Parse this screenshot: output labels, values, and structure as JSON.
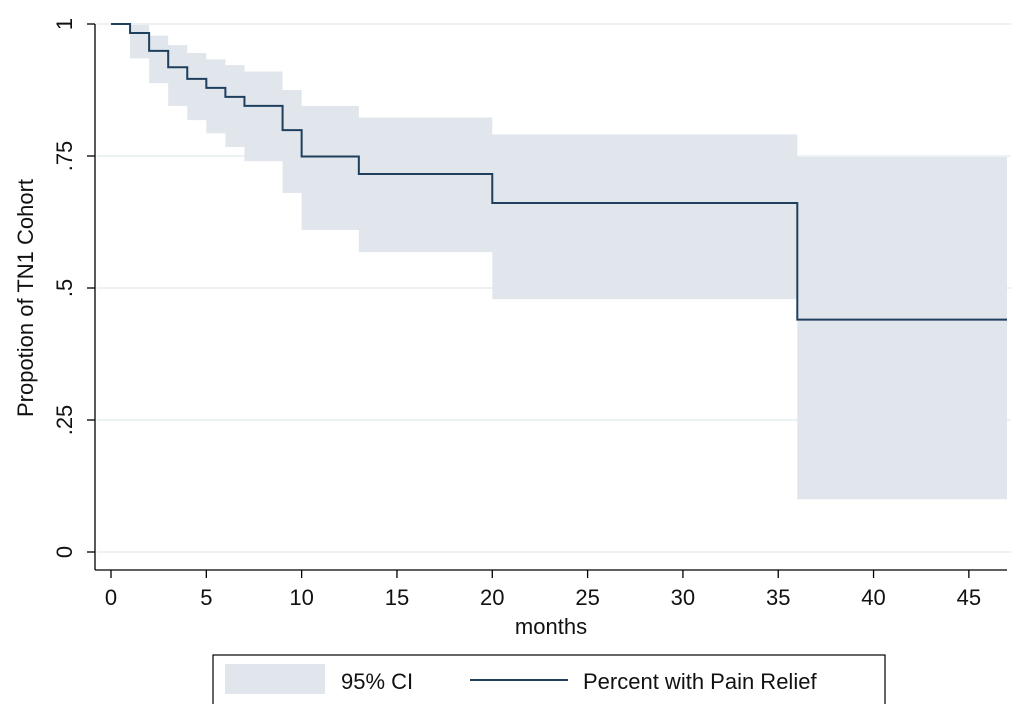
{
  "chart_data": {
    "type": "line",
    "title": "",
    "xlabel": "months",
    "ylabel": "Propotion of TN1 Cohort",
    "xlim": [
      0,
      47
    ],
    "ylim": [
      0,
      1
    ],
    "x_ticks": [
      0,
      5,
      10,
      15,
      20,
      25,
      30,
      35,
      40,
      45
    ],
    "x_tick_labels": [
      "0",
      "5",
      "10",
      "15",
      "20",
      "25",
      "30",
      "35",
      "40",
      "45"
    ],
    "y_ticks": [
      0,
      0.25,
      0.5,
      0.75,
      1
    ],
    "y_tick_labels": [
      "0",
      ".25",
      ".5",
      ".75",
      "1"
    ],
    "grid": "horizontal",
    "legend_position": "bottom",
    "colors": {
      "line": "#1f3f5f",
      "ci_fill": "#e1e5ec",
      "grid": "#e6eef0",
      "axis": "#000000"
    },
    "series": [
      {
        "name": "Percent with Pain Relief",
        "step": "post",
        "x": [
          0,
          1,
          2,
          3,
          4,
          5,
          6,
          7,
          9,
          10,
          13,
          20,
          36,
          47
        ],
        "y": [
          1.0,
          0.983,
          0.949,
          0.918,
          0.896,
          0.879,
          0.862,
          0.845,
          0.799,
          0.749,
          0.716,
          0.661,
          0.44,
          0.44
        ]
      }
    ],
    "ci_band": {
      "name": "95% CI",
      "step": "post",
      "x": [
        1,
        2,
        3,
        4,
        5,
        6,
        7,
        9,
        10,
        13,
        20,
        36,
        47
      ],
      "lower": [
        0.935,
        0.888,
        0.845,
        0.818,
        0.793,
        0.767,
        0.74,
        0.68,
        0.61,
        0.568,
        0.479,
        0.1,
        0.1
      ],
      "upper": [
        0.998,
        0.978,
        0.96,
        0.945,
        0.933,
        0.922,
        0.91,
        0.875,
        0.845,
        0.823,
        0.791,
        0.748,
        0.748
      ]
    },
    "legend": [
      {
        "label": "95% CI",
        "kind": "band"
      },
      {
        "label": "Percent with Pain Relief",
        "kind": "line"
      }
    ]
  }
}
